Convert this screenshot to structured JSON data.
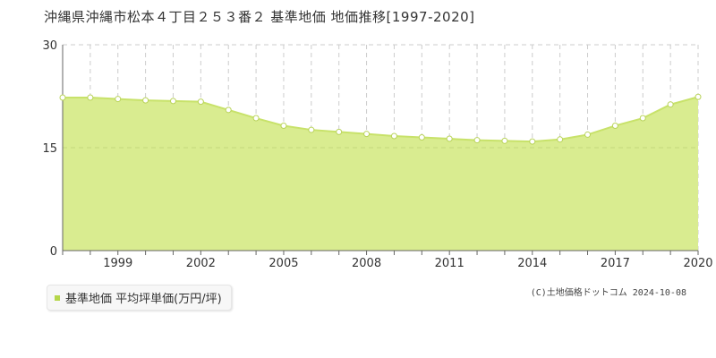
{
  "title": "沖縄県沖縄市松本４丁目２５３番２ 基準地価 地価推移[1997-2020]",
  "legend_label": "基準地価 平均坪単価(万円/坪)",
  "copyright": "(C)土地価格ドットコム 2024-10-08",
  "colors": {
    "line": "#c8e26a",
    "fill": "#d9ec90",
    "marker_stroke": "#b9d35a",
    "grid": "#cccccc",
    "swatch": "#b5d64a"
  },
  "chart_data": {
    "type": "area",
    "x": [
      1997,
      1998,
      1999,
      2000,
      2001,
      2002,
      2003,
      2004,
      2005,
      2006,
      2007,
      2008,
      2009,
      2010,
      2011,
      2012,
      2013,
      2014,
      2015,
      2016,
      2017,
      2018,
      2019,
      2020
    ],
    "series": [
      {
        "name": "基準地価 平均坪単価(万円/坪)",
        "values": [
          22.3,
          22.3,
          22.1,
          21.9,
          21.8,
          21.7,
          20.5,
          19.3,
          18.2,
          17.6,
          17.3,
          17.0,
          16.7,
          16.5,
          16.3,
          16.1,
          16.0,
          15.9,
          16.2,
          16.9,
          18.2,
          19.3,
          21.3,
          22.4
        ]
      }
    ],
    "x_ticks": [
      1999,
      2002,
      2005,
      2008,
      2011,
      2014,
      2017,
      2020
    ],
    "y_ticks": [
      0,
      15,
      30
    ],
    "ylim": [
      0,
      30
    ],
    "xlim": [
      1997,
      2020
    ],
    "grid": true
  }
}
